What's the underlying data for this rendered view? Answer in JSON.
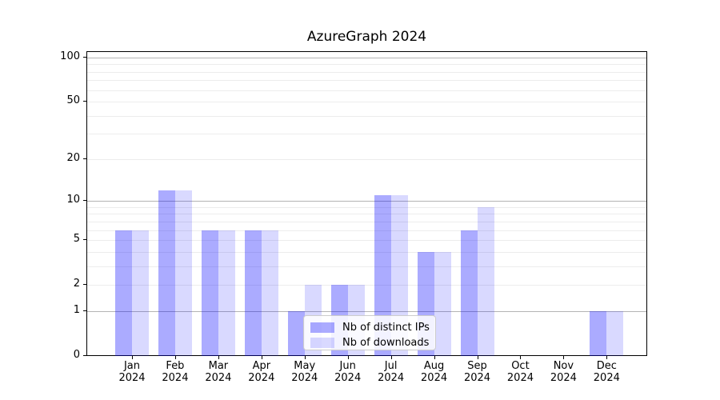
{
  "title": "AzureGraph 2024",
  "chart_data": {
    "type": "bar",
    "title": "AzureGraph 2024",
    "categories": [
      "Jan 2024",
      "Feb 2024",
      "Mar 2024",
      "Apr 2024",
      "May 2024",
      "Jun 2024",
      "Jul 2024",
      "Aug 2024",
      "Sep 2024",
      "Oct 2024",
      "Nov 2024",
      "Dec 2024"
    ],
    "series": [
      {
        "name": "Nb of distinct IPs",
        "values": [
          6,
          12,
          6,
          6,
          1,
          2,
          11,
          4,
          6,
          0,
          0,
          1
        ],
        "color": "rgba(0,0,255,0.33)",
        "color_hex": "#aaaafa"
      },
      {
        "name": "Nb of downloads",
        "values": [
          6,
          12,
          6,
          6,
          2,
          2,
          11,
          4,
          9,
          0,
          0,
          1
        ],
        "color": "rgba(0,0,255,0.15)",
        "color_hex": "#d9d9fa"
      }
    ],
    "xlabel": "",
    "ylabel": "",
    "yscale": "log1p",
    "ylim": [
      0,
      110
    ],
    "y_ticks": [
      100,
      50,
      20,
      10,
      5,
      2,
      1,
      0
    ],
    "y_minor_gridlines": [
      2,
      3,
      4,
      5,
      6,
      7,
      8,
      9,
      20,
      30,
      40,
      50,
      60,
      70,
      80,
      90
    ],
    "y_major_gridlines": [
      1,
      10,
      100
    ],
    "grid": true,
    "legend_position": "lower center"
  },
  "legend": {
    "items": [
      {
        "label": "Nb of distinct IPs"
      },
      {
        "label": "Nb of downloads"
      }
    ]
  },
  "colors": {
    "bar_distinct_ips": "#aaaafa",
    "bar_downloads": "#d9d9fa",
    "grid_minor": "#ececec",
    "grid_major": "#b4b4b4",
    "axis": "#000000",
    "background": "#ffffff"
  }
}
